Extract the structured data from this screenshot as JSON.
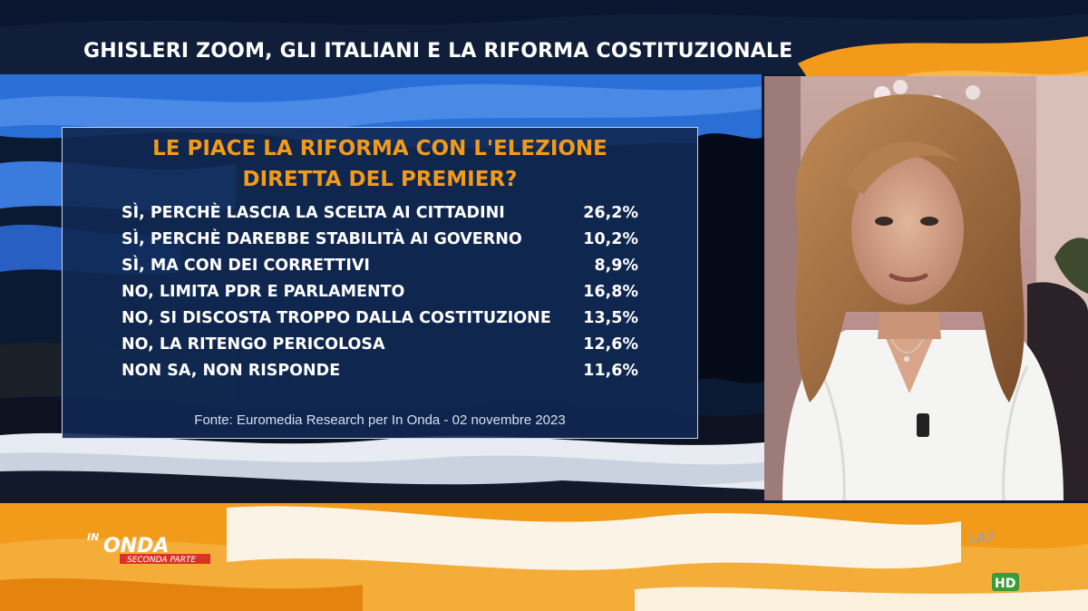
{
  "header": {
    "title": "GHISLERI ZOOM, GLI ITALIANI E LA RIFORMA COSTITUZIONALE"
  },
  "poll": {
    "question_line1": "LE PIACE LA RIFORMA CON L'ELEZIONE",
    "question_line2": "DIRETTA DEL PREMIER?",
    "rows": [
      {
        "label": "SÌ, PERCHÈ LASCIA LA SCELTA AI CITTADINI",
        "value": "26,2%"
      },
      {
        "label": "SÌ, PERCHÈ DAREBBE STABILITÀ AI GOVERNO",
        "value": "10,2%"
      },
      {
        "label": "SÌ, MA CON DEI CORRETTIVI",
        "value": "8,9%"
      },
      {
        "label": "NO, LIMITA PDR E PARLAMENTO",
        "value": "16,8%"
      },
      {
        "label": "NO, SI DISCOSTA TROPPO DALLA COSTITUZIONE",
        "value": "13,5%"
      },
      {
        "label": "NO, LA RITENGO PERICOLOSA",
        "value": "12,6%"
      },
      {
        "label": "NON SA, NON RISPONDE",
        "value": "11,6%"
      }
    ],
    "source": "Fonte: Euromedia Research per In Onda - 02 novembre 2023"
  },
  "logos": {
    "show_line1": "IN",
    "show_line2": "ONDA",
    "show_tag": "SECONDA PARTE",
    "channel": "LA7",
    "channel_badge": "HD"
  },
  "colors": {
    "accent_orange": "#f29a1a",
    "panel_blue": "#102852",
    "brush_blue": "#2a6fd6"
  }
}
